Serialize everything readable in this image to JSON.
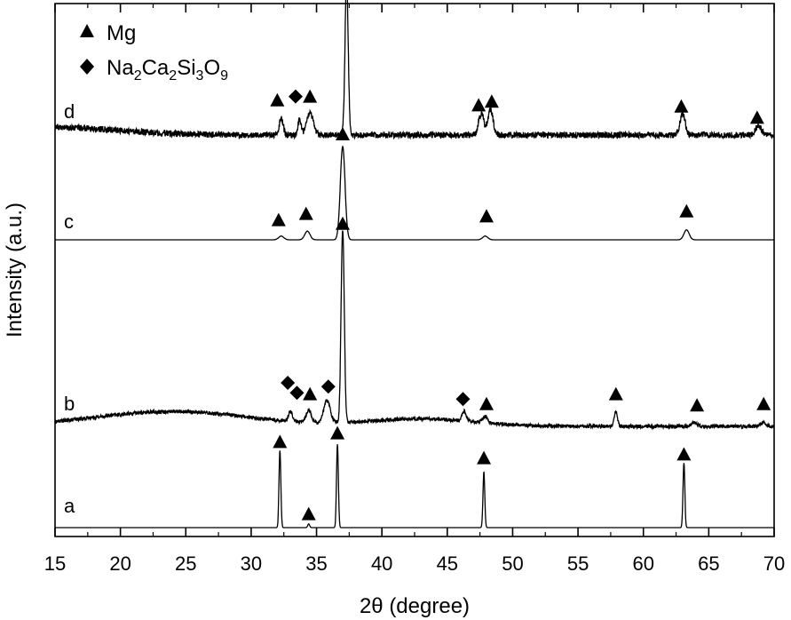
{
  "chart_data": {
    "type": "line",
    "xlabel": "2θ (degree)",
    "ylabel": "Intensity (a.u.)",
    "xlim": [
      15,
      70
    ],
    "x_ticks": [
      15,
      20,
      25,
      30,
      35,
      40,
      45,
      50,
      55,
      60,
      65,
      70
    ],
    "y_ticks_shown": false,
    "grid": false,
    "legend": {
      "placement": "top-left",
      "entries": [
        {
          "marker": "triangle",
          "label": "Mg"
        },
        {
          "marker": "diamond",
          "label_parts": [
            "Na",
            "2",
            "Ca",
            "2",
            "Si",
            "3",
            "O",
            "9"
          ],
          "label": "Na2Ca2Si3O9"
        }
      ]
    },
    "series": [
      {
        "name": "a",
        "baseline": 0.0,
        "noise": 0.0,
        "background": [],
        "peaks": [
          {
            "x": 32.2,
            "h": 0.62,
            "w": 0.07
          },
          {
            "x": 34.4,
            "h": 0.03,
            "w": 0.07
          },
          {
            "x": 36.6,
            "h": 0.67,
            "w": 0.07
          },
          {
            "x": 47.8,
            "h": 0.45,
            "w": 0.07
          },
          {
            "x": 63.1,
            "h": 0.52,
            "w": 0.07
          }
        ],
        "markers": [
          {
            "x": 32.2,
            "type": "triangle",
            "above": 0.69
          },
          {
            "x": 34.4,
            "type": "triangle",
            "above": 0.11
          },
          {
            "x": 36.6,
            "type": "triangle",
            "above": 0.76
          },
          {
            "x": 47.8,
            "type": "triangle",
            "above": 0.56
          },
          {
            "x": 63.1,
            "type": "triangle",
            "above": 0.59
          }
        ]
      },
      {
        "name": "b",
        "baseline": 0.0,
        "noise": 0.015,
        "background": [
          {
            "x": 24,
            "h": 0.12,
            "w": 6
          },
          {
            "x": 43,
            "h": 0.06,
            "w": 4
          }
        ],
        "peaks": [
          {
            "x": 33.0,
            "h": 0.08,
            "w": 0.15
          },
          {
            "x": 34.4,
            "h": 0.1,
            "w": 0.2
          },
          {
            "x": 35.8,
            "h": 0.18,
            "w": 0.25
          },
          {
            "x": 37.0,
            "h": 1.55,
            "w": 0.12
          },
          {
            "x": 46.3,
            "h": 0.08,
            "w": 0.15
          },
          {
            "x": 47.9,
            "h": 0.05,
            "w": 0.2
          },
          {
            "x": 57.9,
            "h": 0.12,
            "w": 0.12
          },
          {
            "x": 63.9,
            "h": 0.03,
            "w": 0.2
          },
          {
            "x": 69.1,
            "h": 0.03,
            "w": 0.2
          }
        ],
        "markers": [
          {
            "x": 32.8,
            "type": "diamond",
            "above": 0.35
          },
          {
            "x": 33.5,
            "type": "diamond",
            "above": 0.27
          },
          {
            "x": 34.5,
            "type": "triangle",
            "above": 0.26
          },
          {
            "x": 35.9,
            "type": "diamond",
            "above": 0.32
          },
          {
            "x": 37.0,
            "type": "triangle",
            "above": 1.63
          },
          {
            "x": 46.2,
            "type": "diamond",
            "above": 0.22
          },
          {
            "x": 48.0,
            "type": "triangle",
            "above": 0.18
          },
          {
            "x": 57.9,
            "type": "triangle",
            "above": 0.26
          },
          {
            "x": 64.1,
            "type": "triangle",
            "above": 0.17
          },
          {
            "x": 69.2,
            "type": "triangle",
            "above": 0.18
          }
        ]
      },
      {
        "name": "c",
        "baseline": 0.0,
        "noise": 0.0,
        "background": [],
        "peaks": [
          {
            "x": 32.3,
            "h": 0.03,
            "w": 0.2
          },
          {
            "x": 34.3,
            "h": 0.07,
            "w": 0.2
          },
          {
            "x": 37.0,
            "h": 0.75,
            "w": 0.18
          },
          {
            "x": 47.9,
            "h": 0.03,
            "w": 0.2
          },
          {
            "x": 63.3,
            "h": 0.08,
            "w": 0.2
          }
        ],
        "markers": [
          {
            "x": 32.1,
            "type": "triangle",
            "above": 0.16
          },
          {
            "x": 34.2,
            "type": "triangle",
            "above": 0.21
          },
          {
            "x": 37.0,
            "type": "triangle",
            "above": 0.85
          },
          {
            "x": 48.0,
            "type": "triangle",
            "above": 0.19
          },
          {
            "x": 63.3,
            "type": "triangle",
            "above": 0.23
          }
        ]
      },
      {
        "name": "d",
        "baseline": 0.0,
        "noise": 0.025,
        "background": [
          {
            "x": 15,
            "h": 0.06,
            "w": 5
          }
        ],
        "peaks": [
          {
            "x": 32.3,
            "h": 0.13,
            "w": 0.15
          },
          {
            "x": 33.7,
            "h": 0.12,
            "w": 0.12
          },
          {
            "x": 34.5,
            "h": 0.18,
            "w": 0.25
          },
          {
            "x": 37.3,
            "h": 1.25,
            "w": 0.12
          },
          {
            "x": 47.6,
            "h": 0.17,
            "w": 0.2
          },
          {
            "x": 48.3,
            "h": 0.2,
            "w": 0.2
          },
          {
            "x": 63.0,
            "h": 0.17,
            "w": 0.2
          },
          {
            "x": 68.8,
            "h": 0.08,
            "w": 0.2
          }
        ],
        "markers": [
          {
            "x": 32.0,
            "type": "triangle",
            "above": 0.28
          },
          {
            "x": 33.4,
            "type": "diamond",
            "above": 0.31
          },
          {
            "x": 34.5,
            "type": "triangle",
            "above": 0.31
          },
          {
            "x": 37.3,
            "type": "triangle",
            "above": 1.4
          },
          {
            "x": 47.4,
            "type": "triangle",
            "above": 0.24
          },
          {
            "x": 48.4,
            "type": "triangle",
            "above": 0.27
          },
          {
            "x": 62.9,
            "type": "triangle",
            "above": 0.23
          },
          {
            "x": 68.7,
            "type": "triangle",
            "above": 0.14
          }
        ]
      }
    ]
  }
}
